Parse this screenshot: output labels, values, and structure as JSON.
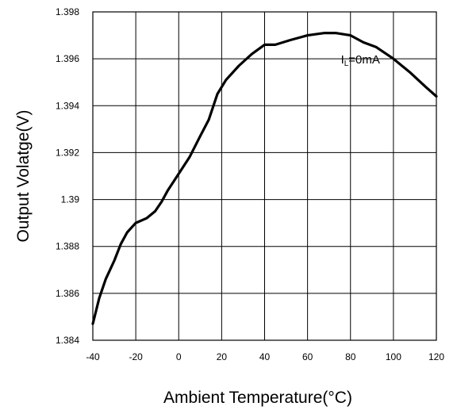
{
  "chart_data": {
    "type": "line",
    "title": "",
    "xlabel": "Ambient Temperature(°C)",
    "ylabel": "Output Volatge(V)",
    "xlim": [
      -40,
      120
    ],
    "ylim": [
      1.384,
      1.398
    ],
    "x_ticks": [
      "-40",
      "-20",
      "0",
      "20",
      "40",
      "60",
      "80",
      "100",
      "120"
    ],
    "y_ticks": [
      "1.398",
      "1.396",
      "1.394",
      "1.392",
      "1.39",
      "1.388",
      "1.386",
      "1.384"
    ],
    "grid": true,
    "annotation": {
      "main": "I",
      "sub": "L",
      "rest": "=0mA"
    },
    "series": [
      {
        "name": "",
        "x": [
          -40,
          -37,
          -34,
          -30,
          -27,
          -24,
          -20,
          -15,
          -11,
          -8,
          -5,
          0,
          5,
          10,
          14,
          18,
          22,
          28,
          34,
          40,
          45,
          52,
          60,
          68,
          73,
          80,
          86,
          92,
          100,
          108,
          115,
          120
        ],
        "y": [
          1.3847,
          1.3858,
          1.3866,
          1.3874,
          1.3881,
          1.3886,
          1.389,
          1.3892,
          1.3895,
          1.3899,
          1.3904,
          1.3911,
          1.3918,
          1.3927,
          1.3934,
          1.3945,
          1.3951,
          1.3957,
          1.3962,
          1.3966,
          1.3966,
          1.3968,
          1.397,
          1.3971,
          1.3971,
          1.397,
          1.3967,
          1.3965,
          1.396,
          1.3954,
          1.3948,
          1.3944
        ]
      }
    ]
  }
}
